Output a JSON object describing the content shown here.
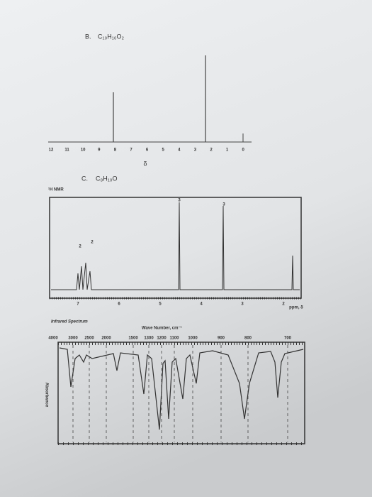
{
  "problem_b": {
    "letter": "B.",
    "formula": "C₁₀H₁₀O₂",
    "axis_ticks": [
      "12",
      "11",
      "10",
      "9",
      "8",
      "7",
      "6",
      "5",
      "4",
      "3",
      "2",
      "1",
      "0"
    ],
    "axis_label": "δ"
  },
  "problem_c": {
    "letter": "C.",
    "formula": "C₈H₁₀O",
    "nmr": {
      "title": "¹H NMR",
      "integrations": [
        "2",
        "2",
        "3",
        "3"
      ],
      "axis_ticks": [
        "7",
        "6",
        "5",
        "4",
        "3",
        "2"
      ],
      "axis_label": "ppm, δ"
    },
    "ir": {
      "title": "Infrared Spectrum",
      "axis_label": "Wave Number, cm⁻¹",
      "axis_ticks": [
        "4000",
        "3000",
        "2500",
        "2000",
        "1500",
        "1300",
        "1200",
        "1100",
        "1000",
        "900",
        "800",
        "700"
      ],
      "y_label": "Absorbance"
    }
  }
}
